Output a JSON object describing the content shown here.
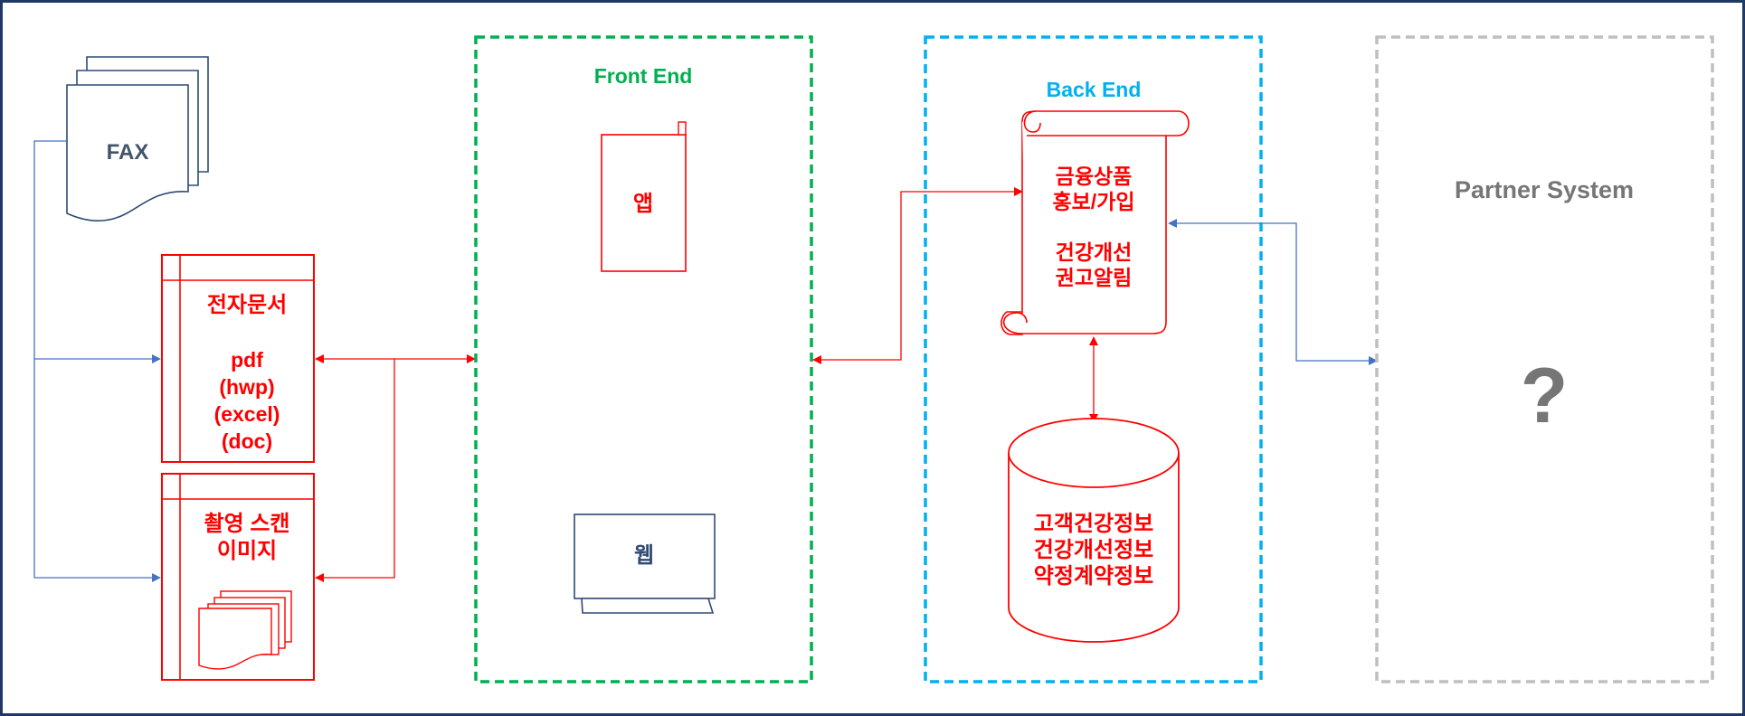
{
  "colors": {
    "frame": "#1f3864",
    "red": "#ff0000",
    "navy": "#2f4a73",
    "green": "#00b050",
    "cyan": "#00b0f0",
    "gray": "#bfbfbf",
    "gray_text": "#767676",
    "blue_arrow": "#4472c4"
  },
  "fax": {
    "label": "FAX",
    "icon": "fax-document-stack-icon"
  },
  "edoc": {
    "title": "전자문서",
    "formats": [
      "pdf",
      "(hwp)",
      "(excel)",
      "(doc)"
    ]
  },
  "scan": {
    "title_lines": [
      "촬영 스캔",
      "이미지"
    ],
    "icon": "document-stack-icon"
  },
  "frontend": {
    "title": "Front End",
    "app_label": "앱",
    "web_label": "웹",
    "app_icon": "mobile-phone-icon",
    "web_icon": "monitor-icon"
  },
  "backend": {
    "title": "Back End",
    "scroll_lines": [
      "금융상품",
      "홍보/가입",
      "",
      "건강개선",
      "권고알림"
    ],
    "db_lines": [
      "고객건강정보",
      "건강개선정보",
      "약정계약정보"
    ],
    "scroll_icon": "scroll-icon",
    "db_icon": "database-cylinder-icon"
  },
  "partner": {
    "title": "Partner System",
    "unknown": "?"
  }
}
